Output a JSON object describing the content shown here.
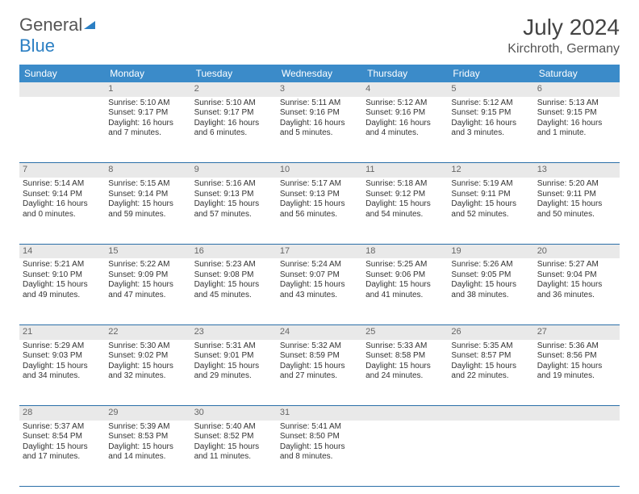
{
  "brand": {
    "name_a": "General",
    "name_b": "Blue"
  },
  "title": "July 2024",
  "location": "Kirchroth, Germany",
  "colors": {
    "header_bg": "#3b8bc9",
    "header_text": "#ffffff",
    "daynum_bg": "#e9e9e9",
    "daynum_text": "#666666",
    "row_border": "#2b6fa8",
    "body_text": "#333333",
    "logo_blue": "#2b7fc3"
  },
  "weekdays": [
    "Sunday",
    "Monday",
    "Tuesday",
    "Wednesday",
    "Thursday",
    "Friday",
    "Saturday"
  ],
  "weeks": [
    {
      "nums": [
        "",
        "1",
        "2",
        "3",
        "4",
        "5",
        "6"
      ],
      "cells": [
        "",
        "Sunrise: 5:10 AM\nSunset: 9:17 PM\nDaylight: 16 hours and 7 minutes.",
        "Sunrise: 5:10 AM\nSunset: 9:17 PM\nDaylight: 16 hours and 6 minutes.",
        "Sunrise: 5:11 AM\nSunset: 9:16 PM\nDaylight: 16 hours and 5 minutes.",
        "Sunrise: 5:12 AM\nSunset: 9:16 PM\nDaylight: 16 hours and 4 minutes.",
        "Sunrise: 5:12 AM\nSunset: 9:15 PM\nDaylight: 16 hours and 3 minutes.",
        "Sunrise: 5:13 AM\nSunset: 9:15 PM\nDaylight: 16 hours and 1 minute."
      ]
    },
    {
      "nums": [
        "7",
        "8",
        "9",
        "10",
        "11",
        "12",
        "13"
      ],
      "cells": [
        "Sunrise: 5:14 AM\nSunset: 9:14 PM\nDaylight: 16 hours and 0 minutes.",
        "Sunrise: 5:15 AM\nSunset: 9:14 PM\nDaylight: 15 hours and 59 minutes.",
        "Sunrise: 5:16 AM\nSunset: 9:13 PM\nDaylight: 15 hours and 57 minutes.",
        "Sunrise: 5:17 AM\nSunset: 9:13 PM\nDaylight: 15 hours and 56 minutes.",
        "Sunrise: 5:18 AM\nSunset: 9:12 PM\nDaylight: 15 hours and 54 minutes.",
        "Sunrise: 5:19 AM\nSunset: 9:11 PM\nDaylight: 15 hours and 52 minutes.",
        "Sunrise: 5:20 AM\nSunset: 9:11 PM\nDaylight: 15 hours and 50 minutes."
      ]
    },
    {
      "nums": [
        "14",
        "15",
        "16",
        "17",
        "18",
        "19",
        "20"
      ],
      "cells": [
        "Sunrise: 5:21 AM\nSunset: 9:10 PM\nDaylight: 15 hours and 49 minutes.",
        "Sunrise: 5:22 AM\nSunset: 9:09 PM\nDaylight: 15 hours and 47 minutes.",
        "Sunrise: 5:23 AM\nSunset: 9:08 PM\nDaylight: 15 hours and 45 minutes.",
        "Sunrise: 5:24 AM\nSunset: 9:07 PM\nDaylight: 15 hours and 43 minutes.",
        "Sunrise: 5:25 AM\nSunset: 9:06 PM\nDaylight: 15 hours and 41 minutes.",
        "Sunrise: 5:26 AM\nSunset: 9:05 PM\nDaylight: 15 hours and 38 minutes.",
        "Sunrise: 5:27 AM\nSunset: 9:04 PM\nDaylight: 15 hours and 36 minutes."
      ]
    },
    {
      "nums": [
        "21",
        "22",
        "23",
        "24",
        "25",
        "26",
        "27"
      ],
      "cells": [
        "Sunrise: 5:29 AM\nSunset: 9:03 PM\nDaylight: 15 hours and 34 minutes.",
        "Sunrise: 5:30 AM\nSunset: 9:02 PM\nDaylight: 15 hours and 32 minutes.",
        "Sunrise: 5:31 AM\nSunset: 9:01 PM\nDaylight: 15 hours and 29 minutes.",
        "Sunrise: 5:32 AM\nSunset: 8:59 PM\nDaylight: 15 hours and 27 minutes.",
        "Sunrise: 5:33 AM\nSunset: 8:58 PM\nDaylight: 15 hours and 24 minutes.",
        "Sunrise: 5:35 AM\nSunset: 8:57 PM\nDaylight: 15 hours and 22 minutes.",
        "Sunrise: 5:36 AM\nSunset: 8:56 PM\nDaylight: 15 hours and 19 minutes."
      ]
    },
    {
      "nums": [
        "28",
        "29",
        "30",
        "31",
        "",
        "",
        ""
      ],
      "cells": [
        "Sunrise: 5:37 AM\nSunset: 8:54 PM\nDaylight: 15 hours and 17 minutes.",
        "Sunrise: 5:39 AM\nSunset: 8:53 PM\nDaylight: 15 hours and 14 minutes.",
        "Sunrise: 5:40 AM\nSunset: 8:52 PM\nDaylight: 15 hours and 11 minutes.",
        "Sunrise: 5:41 AM\nSunset: 8:50 PM\nDaylight: 15 hours and 8 minutes.",
        "",
        "",
        ""
      ]
    }
  ]
}
